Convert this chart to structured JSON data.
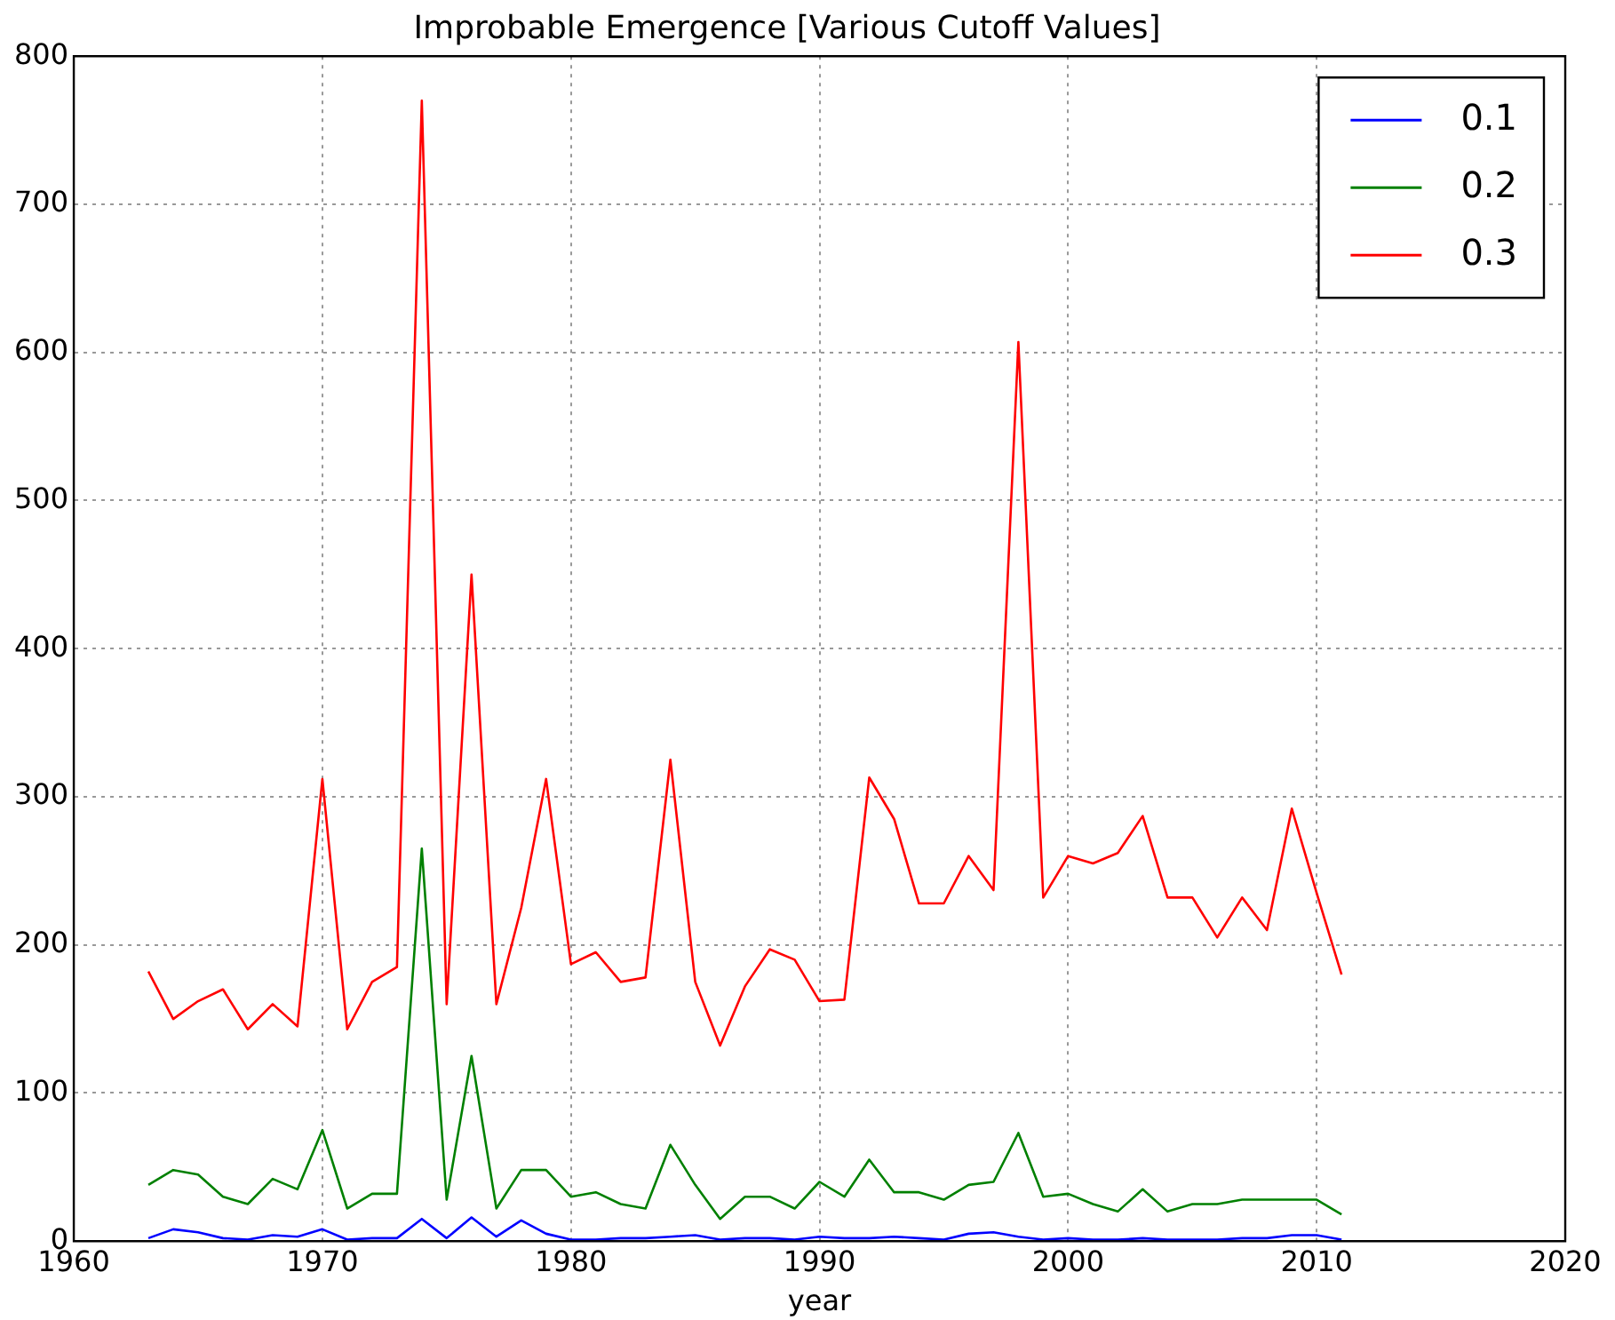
{
  "chart_data": {
    "type": "line",
    "title": "Improbable Emergence [Various Cutoff Values]",
    "xlabel": "year",
    "x": [
      1963,
      1964,
      1965,
      1966,
      1967,
      1968,
      1969,
      1970,
      1971,
      1972,
      1973,
      1974,
      1975,
      1976,
      1977,
      1978,
      1979,
      1980,
      1981,
      1982,
      1983,
      1984,
      1985,
      1986,
      1987,
      1988,
      1989,
      1990,
      1991,
      1992,
      1993,
      1994,
      1995,
      1996,
      1997,
      1998,
      1999,
      2000,
      2001,
      2002,
      2003,
      2004,
      2005,
      2006,
      2007,
      2008,
      2009,
      2010,
      2011
    ],
    "series": [
      {
        "name": "0.1",
        "color": "#0000ff",
        "values": [
          2,
          8,
          6,
          2,
          1,
          4,
          3,
          8,
          1,
          2,
          2,
          15,
          2,
          16,
          3,
          14,
          5,
          1,
          1,
          2,
          2,
          3,
          4,
          1,
          2,
          2,
          1,
          3,
          2,
          2,
          3,
          2,
          1,
          5,
          6,
          3,
          1,
          2,
          1,
          1,
          2,
          1,
          1,
          1,
          2,
          2,
          4,
          4,
          1
        ]
      },
      {
        "name": "0.2",
        "color": "#008000",
        "values": [
          38,
          48,
          45,
          30,
          25,
          42,
          35,
          75,
          22,
          32,
          32,
          265,
          28,
          125,
          22,
          48,
          48,
          30,
          33,
          25,
          22,
          65,
          38,
          15,
          30,
          30,
          22,
          40,
          30,
          55,
          33,
          33,
          28,
          38,
          40,
          73,
          30,
          32,
          25,
          20,
          35,
          20,
          25,
          25,
          28,
          28,
          28,
          28,
          18
        ]
      },
      {
        "name": "0.3",
        "color": "#ff0000",
        "values": [
          182,
          150,
          162,
          170,
          143,
          160,
          145,
          312,
          143,
          175,
          185,
          770,
          160,
          450,
          160,
          225,
          312,
          187,
          195,
          175,
          178,
          325,
          175,
          132,
          172,
          197,
          190,
          162,
          163,
          313,
          285,
          228,
          228,
          260,
          237,
          607,
          232,
          260,
          255,
          262,
          287,
          232,
          232,
          205,
          232,
          210,
          292,
          235,
          180
        ]
      }
    ],
    "xlim": [
      1960,
      2020
    ],
    "xticks": [
      1960,
      1970,
      1980,
      1990,
      2000,
      2010,
      2020
    ],
    "ylim": [
      0,
      800
    ],
    "yticks": [
      0,
      100,
      200,
      300,
      400,
      500,
      600,
      700,
      800
    ],
    "grid": true,
    "legend": "top right"
  }
}
